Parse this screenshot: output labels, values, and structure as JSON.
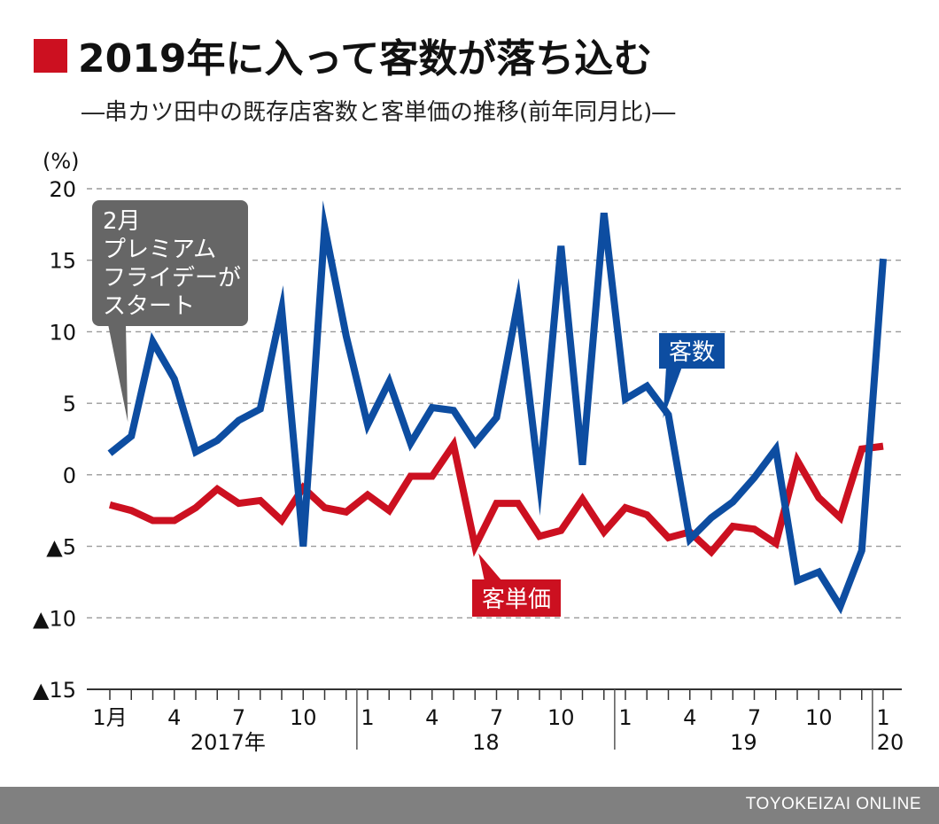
{
  "title": "2019年に入って客数が落ち込む",
  "subtitle": "―串カツ田中の既存店客数と客単価の推移(前年同月比)―",
  "credit": "TOYOKEIZAI ONLINE",
  "colors": {
    "customers": "#0d4da1",
    "unit_price": "#cc1020",
    "title_marker": "#cc1020",
    "callout": "#666666"
  },
  "chart_data": {
    "type": "line",
    "unit_label": "(%)",
    "ylim": [
      -15,
      20
    ],
    "yticks": [
      {
        "value": 20,
        "label": "20"
      },
      {
        "value": 15,
        "label": "15"
      },
      {
        "value": 10,
        "label": "10"
      },
      {
        "value": 5,
        "label": "5"
      },
      {
        "value": 0,
        "label": "0"
      },
      {
        "value": -5,
        "label": "▲5"
      },
      {
        "value": -10,
        "label": "▲10"
      },
      {
        "value": -15,
        "label": "▲15"
      }
    ],
    "grid": true,
    "x": [
      "2017-01",
      "2017-02",
      "2017-03",
      "2017-04",
      "2017-05",
      "2017-06",
      "2017-07",
      "2017-08",
      "2017-09",
      "2017-10",
      "2017-11",
      "2017-12",
      "2018-01",
      "2018-02",
      "2018-03",
      "2018-04",
      "2018-05",
      "2018-06",
      "2018-07",
      "2018-08",
      "2018-09",
      "2018-10",
      "2018-11",
      "2018-12",
      "2019-01",
      "2019-02",
      "2019-03",
      "2019-04",
      "2019-05",
      "2019-06",
      "2019-07",
      "2019-08",
      "2019-09",
      "2019-10",
      "2019-11",
      "2019-12",
      "2020-01"
    ],
    "xticks": [
      {
        "index": 0,
        "label": "1月"
      },
      {
        "index": 3,
        "label": "4"
      },
      {
        "index": 6,
        "label": "7"
      },
      {
        "index": 9,
        "label": "10"
      },
      {
        "index": 12,
        "label": "1"
      },
      {
        "index": 15,
        "label": "4"
      },
      {
        "index": 18,
        "label": "7"
      },
      {
        "index": 21,
        "label": "10"
      },
      {
        "index": 24,
        "label": "1"
      },
      {
        "index": 27,
        "label": "4"
      },
      {
        "index": 30,
        "label": "7"
      },
      {
        "index": 33,
        "label": "10"
      },
      {
        "index": 36,
        "label": "1"
      }
    ],
    "year_groups": [
      {
        "label": "2017年",
        "start": 0,
        "end": 11
      },
      {
        "label": "18",
        "start": 12,
        "end": 23
      },
      {
        "label": "19",
        "start": 24,
        "end": 35
      },
      {
        "label": "20",
        "start": 36,
        "end": 36
      }
    ],
    "series": [
      {
        "name": "客数",
        "key": "customers",
        "values": [
          1.5,
          2.7,
          9.3,
          6.7,
          1.6,
          2.4,
          3.8,
          4.6,
          11.6,
          -5.0,
          17.3,
          9.7,
          3.5,
          6.5,
          2.2,
          4.7,
          4.5,
          2.2,
          4.0,
          12.1,
          -0.5,
          16.0,
          0.7,
          18.3,
          5.3,
          6.2,
          4.2,
          -4.5,
          -3.0,
          -1.9,
          -0.2,
          1.8,
          -7.4,
          -6.8,
          -9.2,
          -5.3,
          15.1
        ]
      },
      {
        "name": "客単価",
        "key": "unit_price",
        "values": [
          -2.1,
          -2.5,
          -3.2,
          -3.2,
          -2.3,
          -1.0,
          -2.0,
          -1.8,
          -3.2,
          -0.9,
          -2.3,
          -2.6,
          -1.4,
          -2.5,
          -0.1,
          -0.1,
          2.1,
          -5.0,
          -2.0,
          -2.0,
          -4.3,
          -3.9,
          -1.7,
          -4.0,
          -2.3,
          -2.8,
          -4.4,
          -4.0,
          -5.4,
          -3.6,
          -3.8,
          -4.8,
          1.0,
          -1.6,
          -3.0,
          1.8,
          2.0
        ]
      }
    ],
    "annotations": [
      {
        "key": "callout",
        "lines": [
          "2月",
          "プレミアム",
          "フライデーが",
          "スタート"
        ],
        "point_index": 1,
        "series": "customers"
      },
      {
        "key": "label-customers",
        "text": "客数",
        "series": "customers",
        "point_index": 26
      },
      {
        "key": "label-unit-price",
        "text": "客単価",
        "series": "unit_price",
        "point_index": 17
      }
    ]
  }
}
